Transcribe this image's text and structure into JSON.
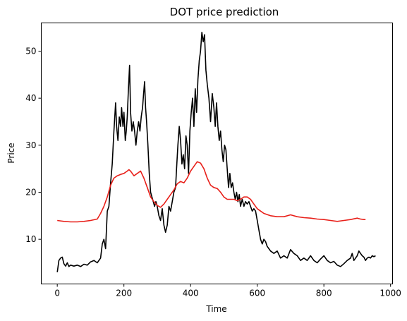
{
  "chart_data": {
    "type": "line",
    "title": "DOT price prediction",
    "xlabel": "Time",
    "ylabel": "Price",
    "xlim": [
      -48,
      1006
    ],
    "ylim": [
      0.5,
      56
    ],
    "xticks": [
      0,
      200,
      400,
      600,
      800,
      1000
    ],
    "yticks": [
      10,
      20,
      30,
      40,
      50
    ],
    "grid": false,
    "series": [
      {
        "color": "#000000",
        "points": [
          [
            0,
            3
          ],
          [
            5,
            5.5
          ],
          [
            10,
            6
          ],
          [
            15,
            6.2
          ],
          [
            20,
            4.8
          ],
          [
            25,
            4.3
          ],
          [
            30,
            5
          ],
          [
            35,
            4.2
          ],
          [
            40,
            4.5
          ],
          [
            50,
            4.3
          ],
          [
            60,
            4.5
          ],
          [
            70,
            4.2
          ],
          [
            80,
            4.7
          ],
          [
            90,
            4.5
          ],
          [
            100,
            5.2
          ],
          [
            110,
            5.5
          ],
          [
            120,
            5
          ],
          [
            130,
            6
          ],
          [
            135,
            9
          ],
          [
            140,
            10
          ],
          [
            145,
            8
          ],
          [
            150,
            16
          ],
          [
            155,
            17
          ],
          [
            160,
            22
          ],
          [
            165,
            26
          ],
          [
            170,
            33
          ],
          [
            175,
            39
          ],
          [
            178,
            34
          ],
          [
            182,
            31
          ],
          [
            186,
            36
          ],
          [
            190,
            34
          ],
          [
            193,
            38
          ],
          [
            197,
            34
          ],
          [
            200,
            37
          ],
          [
            204,
            31
          ],
          [
            207,
            33
          ],
          [
            210,
            36
          ],
          [
            213,
            41
          ],
          [
            217,
            47
          ],
          [
            220,
            37
          ],
          [
            224,
            33
          ],
          [
            228,
            35
          ],
          [
            232,
            33
          ],
          [
            236,
            30
          ],
          [
            240,
            33
          ],
          [
            244,
            35
          ],
          [
            248,
            33
          ],
          [
            252,
            36
          ],
          [
            256,
            38
          ],
          [
            259,
            41
          ],
          [
            262,
            43.5
          ],
          [
            265,
            38
          ],
          [
            268,
            35
          ],
          [
            272,
            30
          ],
          [
            276,
            24
          ],
          [
            280,
            20
          ],
          [
            284,
            19
          ],
          [
            288,
            18
          ],
          [
            292,
            17
          ],
          [
            296,
            18
          ],
          [
            300,
            17
          ],
          [
            305,
            15
          ],
          [
            310,
            14
          ],
          [
            315,
            16.5
          ],
          [
            320,
            13
          ],
          [
            325,
            11.5
          ],
          [
            330,
            13
          ],
          [
            335,
            17
          ],
          [
            340,
            16
          ],
          [
            345,
            18
          ],
          [
            350,
            20
          ],
          [
            355,
            21
          ],
          [
            358,
            25
          ],
          [
            362,
            30
          ],
          [
            366,
            34
          ],
          [
            370,
            31
          ],
          [
            374,
            26
          ],
          [
            378,
            28
          ],
          [
            382,
            25
          ],
          [
            386,
            32
          ],
          [
            390,
            30
          ],
          [
            394,
            24
          ],
          [
            398,
            33
          ],
          [
            402,
            37
          ],
          [
            406,
            40
          ],
          [
            410,
            34
          ],
          [
            414,
            42
          ],
          [
            418,
            37
          ],
          [
            422,
            44
          ],
          [
            426,
            48
          ],
          [
            430,
            50
          ],
          [
            434,
            54
          ],
          [
            438,
            52
          ],
          [
            442,
            53.5
          ],
          [
            446,
            46
          ],
          [
            450,
            43
          ],
          [
            455,
            40
          ],
          [
            460,
            35
          ],
          [
            465,
            41
          ],
          [
            470,
            38
          ],
          [
            474,
            34
          ],
          [
            478,
            39
          ],
          [
            482,
            34
          ],
          [
            486,
            31
          ],
          [
            490,
            33
          ],
          [
            494,
            29
          ],
          [
            498,
            26.5
          ],
          [
            502,
            30
          ],
          [
            506,
            29
          ],
          [
            510,
            25
          ],
          [
            514,
            21
          ],
          [
            518,
            24
          ],
          [
            522,
            21
          ],
          [
            526,
            22
          ],
          [
            530,
            20
          ],
          [
            534,
            18.5
          ],
          [
            538,
            20
          ],
          [
            542,
            18
          ],
          [
            546,
            19.5
          ],
          [
            550,
            17
          ],
          [
            555,
            18.5
          ],
          [
            560,
            17
          ],
          [
            565,
            18
          ],
          [
            570,
            17.5
          ],
          [
            575,
            18
          ],
          [
            580,
            17
          ],
          [
            585,
            16
          ],
          [
            590,
            16.5
          ],
          [
            595,
            16
          ],
          [
            600,
            14
          ],
          [
            605,
            12
          ],
          [
            610,
            10
          ],
          [
            615,
            9
          ],
          [
            620,
            10
          ],
          [
            625,
            9.5
          ],
          [
            630,
            8.5
          ],
          [
            635,
            8
          ],
          [
            640,
            7.5
          ],
          [
            650,
            7
          ],
          [
            660,
            7.5
          ],
          [
            670,
            6
          ],
          [
            680,
            6.5
          ],
          [
            690,
            6
          ],
          [
            700,
            7.8
          ],
          [
            710,
            7
          ],
          [
            720,
            6.5
          ],
          [
            730,
            5.5
          ],
          [
            740,
            6
          ],
          [
            750,
            5.5
          ],
          [
            760,
            6.5
          ],
          [
            770,
            5.5
          ],
          [
            780,
            5
          ],
          [
            790,
            5.8
          ],
          [
            800,
            6.5
          ],
          [
            810,
            5.5
          ],
          [
            820,
            5
          ],
          [
            830,
            5.3
          ],
          [
            840,
            4.5
          ],
          [
            850,
            4.2
          ],
          [
            860,
            4.8
          ],
          [
            870,
            5.5
          ],
          [
            880,
            6
          ],
          [
            885,
            7
          ],
          [
            890,
            5.5
          ],
          [
            895,
            6
          ],
          [
            900,
            6.5
          ],
          [
            905,
            7.5
          ],
          [
            910,
            7
          ],
          [
            915,
            6.5
          ],
          [
            920,
            6.2
          ],
          [
            925,
            5.5
          ],
          [
            930,
            6
          ],
          [
            935,
            6.2
          ],
          [
            940,
            6
          ],
          [
            945,
            6.5
          ],
          [
            950,
            6.3
          ],
          [
            955,
            6.5
          ]
        ]
      },
      {
        "color": "#e8201a",
        "points": [
          [
            0,
            14
          ],
          [
            20,
            13.8
          ],
          [
            40,
            13.7
          ],
          [
            60,
            13.7
          ],
          [
            80,
            13.8
          ],
          [
            100,
            14
          ],
          [
            120,
            14.3
          ],
          [
            130,
            15.5
          ],
          [
            140,
            17
          ],
          [
            150,
            19
          ],
          [
            160,
            21.5
          ],
          [
            170,
            23
          ],
          [
            180,
            23.5
          ],
          [
            190,
            23.8
          ],
          [
            200,
            24
          ],
          [
            210,
            24.5
          ],
          [
            215,
            24.8
          ],
          [
            220,
            24.5
          ],
          [
            230,
            23.5
          ],
          [
            240,
            24
          ],
          [
            250,
            24.5
          ],
          [
            260,
            23
          ],
          [
            270,
            21
          ],
          [
            280,
            19
          ],
          [
            290,
            18
          ],
          [
            300,
            17.2
          ],
          [
            310,
            16.8
          ],
          [
            320,
            17.5
          ],
          [
            330,
            18.5
          ],
          [
            340,
            19.5
          ],
          [
            350,
            20.5
          ],
          [
            360,
            21.8
          ],
          [
            370,
            22.3
          ],
          [
            380,
            22
          ],
          [
            390,
            23
          ],
          [
            400,
            24.5
          ],
          [
            410,
            25.5
          ],
          [
            420,
            26.5
          ],
          [
            430,
            26.2
          ],
          [
            440,
            25
          ],
          [
            450,
            23
          ],
          [
            460,
            21.5
          ],
          [
            470,
            21
          ],
          [
            480,
            20.8
          ],
          [
            490,
            20
          ],
          [
            500,
            19
          ],
          [
            510,
            18.5
          ],
          [
            520,
            18.5
          ],
          [
            530,
            18.5
          ],
          [
            540,
            18.2
          ],
          [
            550,
            18.5
          ],
          [
            560,
            19
          ],
          [
            570,
            19
          ],
          [
            580,
            18.5
          ],
          [
            590,
            17.5
          ],
          [
            600,
            16.5
          ],
          [
            610,
            16
          ],
          [
            620,
            15.5
          ],
          [
            640,
            15
          ],
          [
            660,
            14.8
          ],
          [
            680,
            14.8
          ],
          [
            700,
            15.2
          ],
          [
            720,
            14.8
          ],
          [
            740,
            14.6
          ],
          [
            760,
            14.5
          ],
          [
            780,
            14.3
          ],
          [
            800,
            14.2
          ],
          [
            820,
            14
          ],
          [
            840,
            13.8
          ],
          [
            860,
            14
          ],
          [
            880,
            14.2
          ],
          [
            900,
            14.5
          ],
          [
            910,
            14.3
          ],
          [
            920,
            14.2
          ],
          [
            925,
            14.2
          ]
        ]
      }
    ]
  }
}
